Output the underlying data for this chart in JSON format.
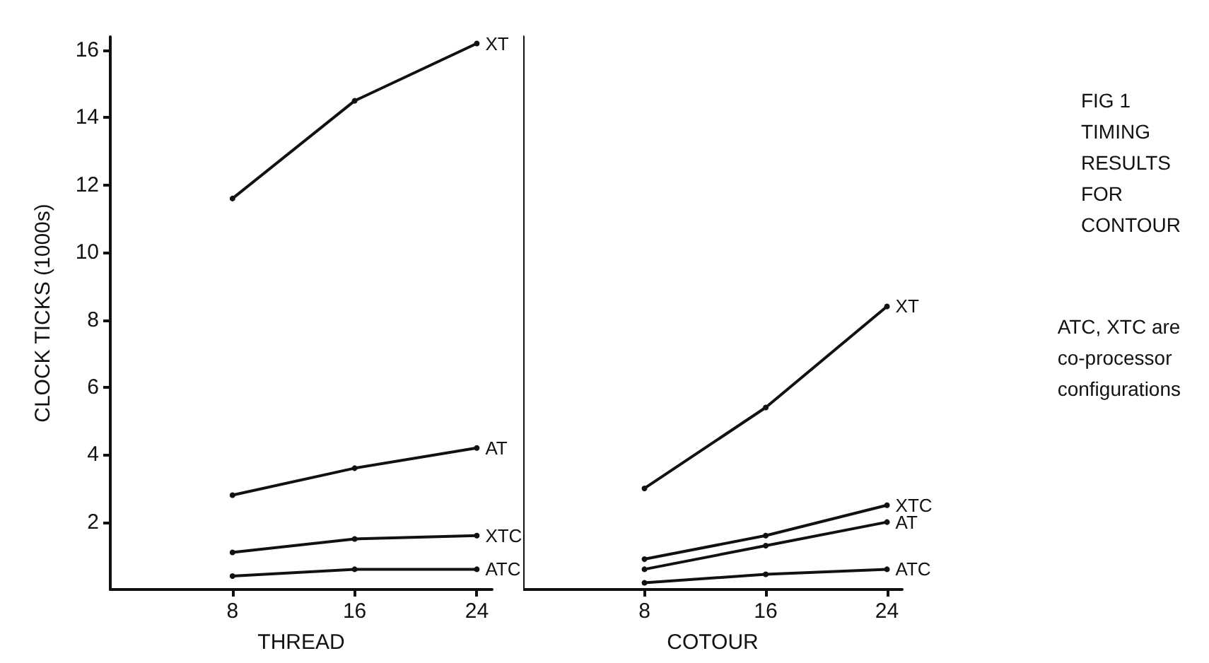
{
  "chart_data": [
    {
      "type": "line",
      "xlabel": "THREAD",
      "ylabel": "CLOCK TICKS (1000s)",
      "x": [
        8,
        16,
        24
      ],
      "xlim": [
        0,
        25
      ],
      "xticks": [
        8,
        16,
        24
      ],
      "ylim": [
        0,
        16.4
      ],
      "yticks": [
        2,
        4,
        6,
        8,
        10,
        12,
        14,
        16
      ],
      "marker": "circle",
      "grid": false,
      "legend": false,
      "series": [
        {
          "name": "XT",
          "color": "#111111",
          "values": [
            11.6,
            14.5,
            16.2
          ]
        },
        {
          "name": "AT",
          "color": "#111111",
          "values": [
            2.8,
            3.6,
            4.2
          ]
        },
        {
          "name": "XTC",
          "color": "#111111",
          "values": [
            1.1,
            1.5,
            1.6
          ]
        },
        {
          "name": "ATC",
          "color": "#111111",
          "values": [
            0.4,
            0.6,
            0.6
          ]
        }
      ]
    },
    {
      "type": "line",
      "xlabel": "COTOUR",
      "x": [
        8,
        16,
        24
      ],
      "xlim": [
        0,
        25
      ],
      "xticks": [
        8,
        16,
        24
      ],
      "ylim": [
        0,
        16.4
      ],
      "yticks": [
        2,
        4,
        6,
        8,
        10,
        12,
        14,
        16
      ],
      "tick_labels": "x",
      "marker": "circle",
      "grid": false,
      "legend": false,
      "annotations": [
        "FIG 1\nTIMING\nRESULTS\nFOR\nCONTOUR",
        "ATC, XTC are\nco-processor\nconfigurations"
      ],
      "series": [
        {
          "name": "XT",
          "color": "#111111",
          "values": [
            3.0,
            5.4,
            8.4
          ]
        },
        {
          "name": "AT",
          "color": "#111111",
          "values": [
            0.6,
            1.3,
            2.0
          ]
        },
        {
          "name": "XTC",
          "color": "#111111",
          "values": [
            0.9,
            1.6,
            2.5
          ]
        },
        {
          "name": "ATC",
          "color": "#111111",
          "values": [
            0.2,
            0.45,
            0.6
          ]
        }
      ]
    }
  ]
}
